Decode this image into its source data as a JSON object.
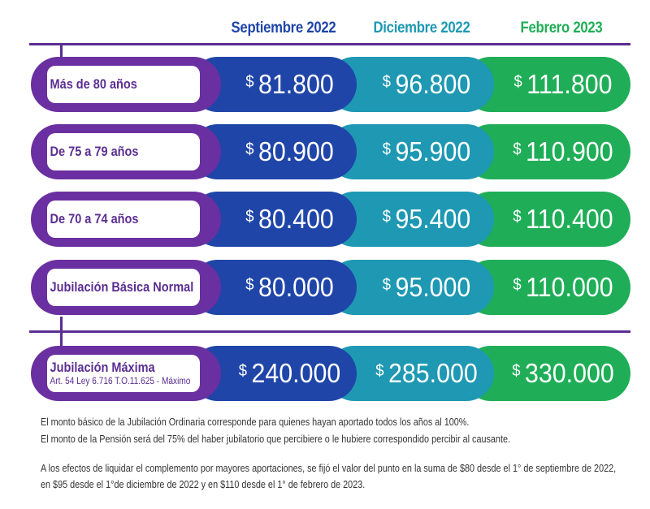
{
  "chart_data": {
    "type": "table",
    "currency": "$",
    "columns": [
      {
        "label": "Septiembre 2022",
        "color": "#1f45a8"
      },
      {
        "label": "Diciembre 2022",
        "color": "#1e98b3"
      },
      {
        "label": "Febrero 2023",
        "color": "#1fae57"
      }
    ],
    "rows": [
      {
        "label": "Más de 80 años",
        "values": [
          "81.800",
          "96.800",
          "111.800"
        ]
      },
      {
        "label": "De 75 a 79 años",
        "values": [
          "80.900",
          "95.900",
          "110.900"
        ]
      },
      {
        "label": "De 70 a 74 años",
        "values": [
          "80.400",
          "95.400",
          "110.400"
        ]
      },
      {
        "label": "Jubilación Básica Normal",
        "values": [
          "80.000",
          "95.000",
          "110.000"
        ]
      },
      {
        "label": "Jubilación Máxima",
        "sublabel": "Art. 54 Ley 6.716 T.O.11.625 - Máximo",
        "values": [
          "240.000",
          "285.000",
          "330.000"
        ]
      }
    ],
    "label_color": "#6a2fa0",
    "line_color": "#5b2e91"
  },
  "notes": [
    "El monto básico de la Jubilación Ordinaria corresponde para quienes hayan aportado todos los años al 100%.",
    "El monto de la Pensión será del 75% del haber jubilatorio que percibiere o le hubiere correspondido percibir al causante.",
    "A los efectos de liquidar el complemento por mayores aportaciones, se fijó el valor del punto en la suma de $80 desde el 1° de septiembre de 2022,",
    "en $95 desde el 1°de diciembre de 2022 y en $110 desde el 1° de febrero de 2023."
  ]
}
